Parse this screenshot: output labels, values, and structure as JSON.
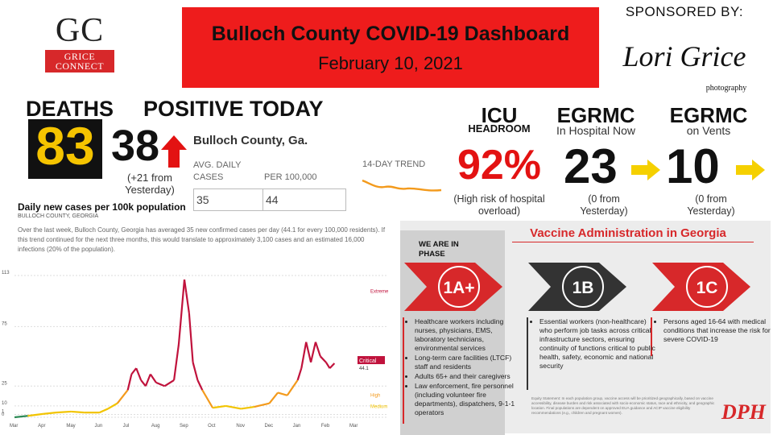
{
  "logo": {
    "letters": "GC",
    "banner_line1": "GRICE",
    "banner_line2": "CONNECT"
  },
  "header": {
    "title": "Bulloch County COVID-19 Dashboard",
    "date": "February 10, 2021"
  },
  "sponsor": {
    "label": "SPONSORED BY:",
    "name_script": "Lori Grice",
    "sub": "photography"
  },
  "deaths": {
    "label": "DEATHS",
    "value": "83"
  },
  "positive": {
    "label": "POSITIVE TODAY",
    "value": "38",
    "note": "(+21 from Yesterday)"
  },
  "county_widget": {
    "title": "Bulloch County, Ga.",
    "avg_label_line1": "AVG. DAILY",
    "avg_label_line2": "CASES",
    "per_label": "PER 100,000",
    "avg_value": "35",
    "per_value": "44",
    "trend_label": "14-DAY TREND"
  },
  "icu": {
    "title": "ICU",
    "sub": "HEADROOM",
    "value": "92%",
    "note": "(High risk of hospital overload)"
  },
  "egrmc_hospital": {
    "title": "EGRMC",
    "sub": "In Hospital Now",
    "value": "23",
    "note": "(0 from Yesterday)"
  },
  "egrmc_vents": {
    "title": "EGRMC",
    "sub": "on Vents",
    "value": "10",
    "note": "(0 from Yesterday)"
  },
  "chart_section": {
    "title": "Daily new cases per 100k population",
    "subtitle": "BULLOCH COUNTY, GEORGIA",
    "description": "Over the last week, Bulloch County, Georgia has averaged 35 new confirmed cases per day (44.1 for every 100,000 residents). If this trend continued for the next three months, this would translate to approximately 3,100 cases and an estimated 16,000 infections (20% of the population)."
  },
  "chart_data": {
    "type": "line",
    "title": "Daily new cases per 100k population",
    "x_ticks": [
      "Mar",
      "Apr",
      "May",
      "Jun",
      "Jul",
      "Aug",
      "Sep",
      "Oct",
      "Nov",
      "Dec",
      "Jan",
      "Feb",
      "Mar"
    ],
    "y_ticks": [
      0,
      1,
      10,
      25,
      75,
      113
    ],
    "ylim": [
      0,
      113
    ],
    "threshold_labels": [
      "Extreme",
      "Critical",
      "High",
      "Medium"
    ],
    "current_label": "Critical",
    "current_value": "44.1",
    "colors": {
      "low": "#2e8b57",
      "medium": "#f2c400",
      "high": "#f39a1c",
      "critical": "#c0123c"
    },
    "series": [
      {
        "x": [
          "Mar 1",
          "Mar 15",
          "Apr 1",
          "Apr 15",
          "May 1",
          "May 15",
          "Jun 1",
          "Jun 10",
          "Jun 20",
          "Jul 1",
          "Jul 5",
          "Jul 10",
          "Jul 15",
          "Jul 20",
          "Jul 25",
          "Aug 1",
          "Aug 10",
          "Aug 20",
          "Aug 25",
          "Sep 1",
          "Sep 3",
          "Sep 6",
          "Sep 10",
          "Sep 15",
          "Sep 20",
          "Oct 1",
          "Oct 15",
          "Nov 1",
          "Nov 15",
          "Dec 1",
          "Dec 10",
          "Dec 20",
          "Jan 1",
          "Jan 5",
          "Jan 10",
          "Jan 15",
          "Jan 20",
          "Jan 25",
          "Feb 1",
          "Feb 5",
          "Feb 10"
        ],
        "values": [
          0,
          0.5,
          1.5,
          3,
          4,
          3,
          3,
          7,
          12,
          22,
          35,
          40,
          30,
          25,
          35,
          28,
          25,
          30,
          60,
          110,
          100,
          85,
          45,
          30,
          22,
          8,
          10,
          7,
          9,
          12,
          20,
          18,
          30,
          40,
          62,
          45,
          62,
          50,
          45,
          40,
          44.1
        ]
      }
    ]
  },
  "vaccine": {
    "title": "Vaccine Administration in Georgia",
    "phase_label": "WE ARE IN PHASE",
    "phases": [
      {
        "name": "1A+",
        "color": "#d7282a",
        "items": [
          "Healthcare workers including nurses, physicians, EMS, laboratory technicians, environmental services",
          "Long-term care facilities (LTCF) staff and residents",
          "Adults 65+ and their caregivers",
          "Law enforcement, fire personnel (including volunteer fire departments), dispatchers, 9-1-1 operators"
        ]
      },
      {
        "name": "1B",
        "color": "#333333",
        "items": [
          "Essential workers (non-healthcare) who perform job tasks across critical infrastructure sectors, ensuring continuity of functions critical to public health, safety, economic and national security"
        ]
      },
      {
        "name": "1C",
        "color": "#d7282a",
        "items": [
          "Persons aged 16-64 with medical conditions that increase the risk for severe COVID-19"
        ]
      }
    ],
    "footnote": "Equity Statement: In each population group, vaccine access will be prioritized geographically, based on vaccine accessibility, disease burden and risk associated with socio-economic status, race and ethnicity, and geographic location. Final populations are dependent on approved EUA guidance and ACIP vaccine eligibility recommendations (e.g., children and pregnant women).",
    "logo_text": "DPH"
  }
}
